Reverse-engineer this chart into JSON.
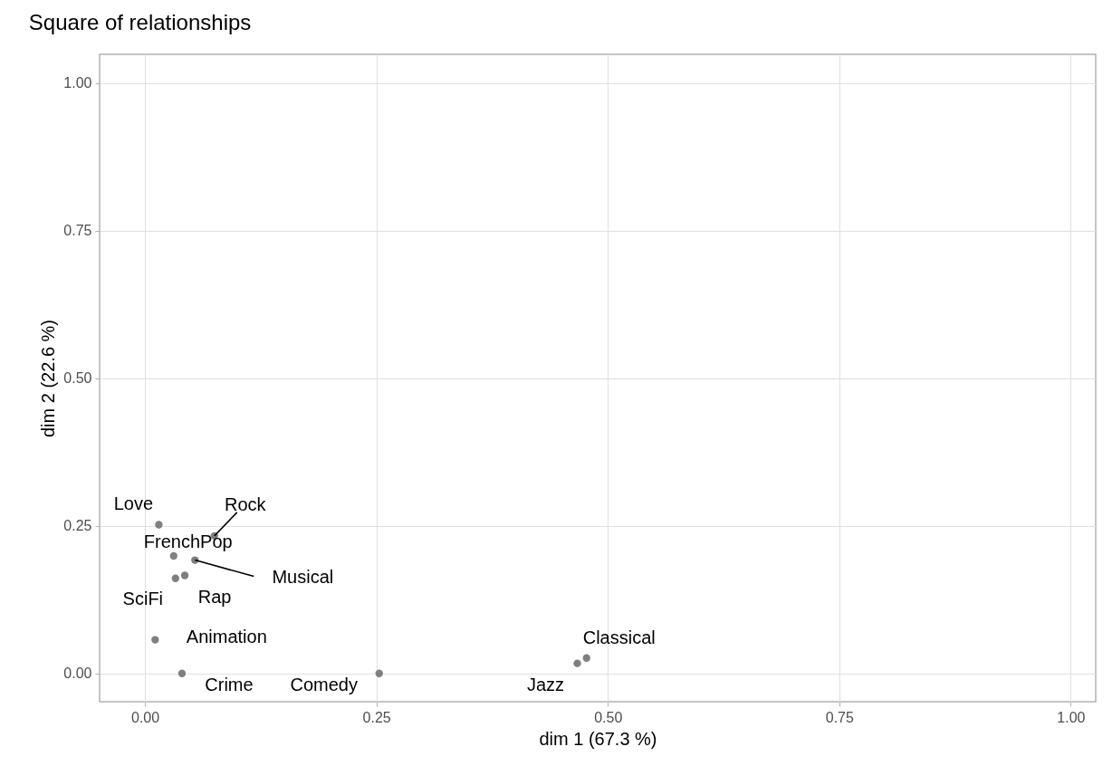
{
  "chart_data": {
    "type": "scatter",
    "title": "Square of relationships",
    "xlabel": "dim 1 (67.3 %)",
    "ylabel": "dim 2 (22.6 %)",
    "x": [
      0.015,
      0.075,
      0.031,
      0.054,
      0.033,
      0.043,
      0.011,
      0.04,
      0.253,
      0.467,
      0.477
    ],
    "values": [
      0.252,
      0.233,
      0.199,
      0.192,
      0.161,
      0.166,
      0.057,
      0.0,
      0.0,
      0.017,
      0.026
    ],
    "value_labels": [
      "Love",
      "Rock",
      "FrenchPop",
      "Musical",
      "SciFi",
      "Rap",
      "Animation",
      "Crime",
      "Comedy",
      "Jazz",
      "Classical"
    ],
    "color": "#7f7f7f",
    "marker": "circle",
    "grid": true,
    "xlim": [
      -0.049,
      1.027
    ],
    "ylim": [
      -0.048,
      1.049
    ],
    "xticks": [
      {
        "value": 0,
        "label": "0.00"
      },
      {
        "value": 0.25,
        "label": "0.25"
      },
      {
        "value": 0.5,
        "label": "0.50"
      },
      {
        "value": 0.75,
        "label": "0.75"
      },
      {
        "value": 1,
        "label": "1.00"
      }
    ],
    "yticks": [
      {
        "value": 0,
        "label": "0.00"
      },
      {
        "value": 0.25,
        "label": "0.25"
      },
      {
        "value": 0.5,
        "label": "0.50"
      },
      {
        "value": 0.75,
        "label": "0.75"
      },
      {
        "value": 1,
        "label": "1.00"
      }
    ]
  }
}
